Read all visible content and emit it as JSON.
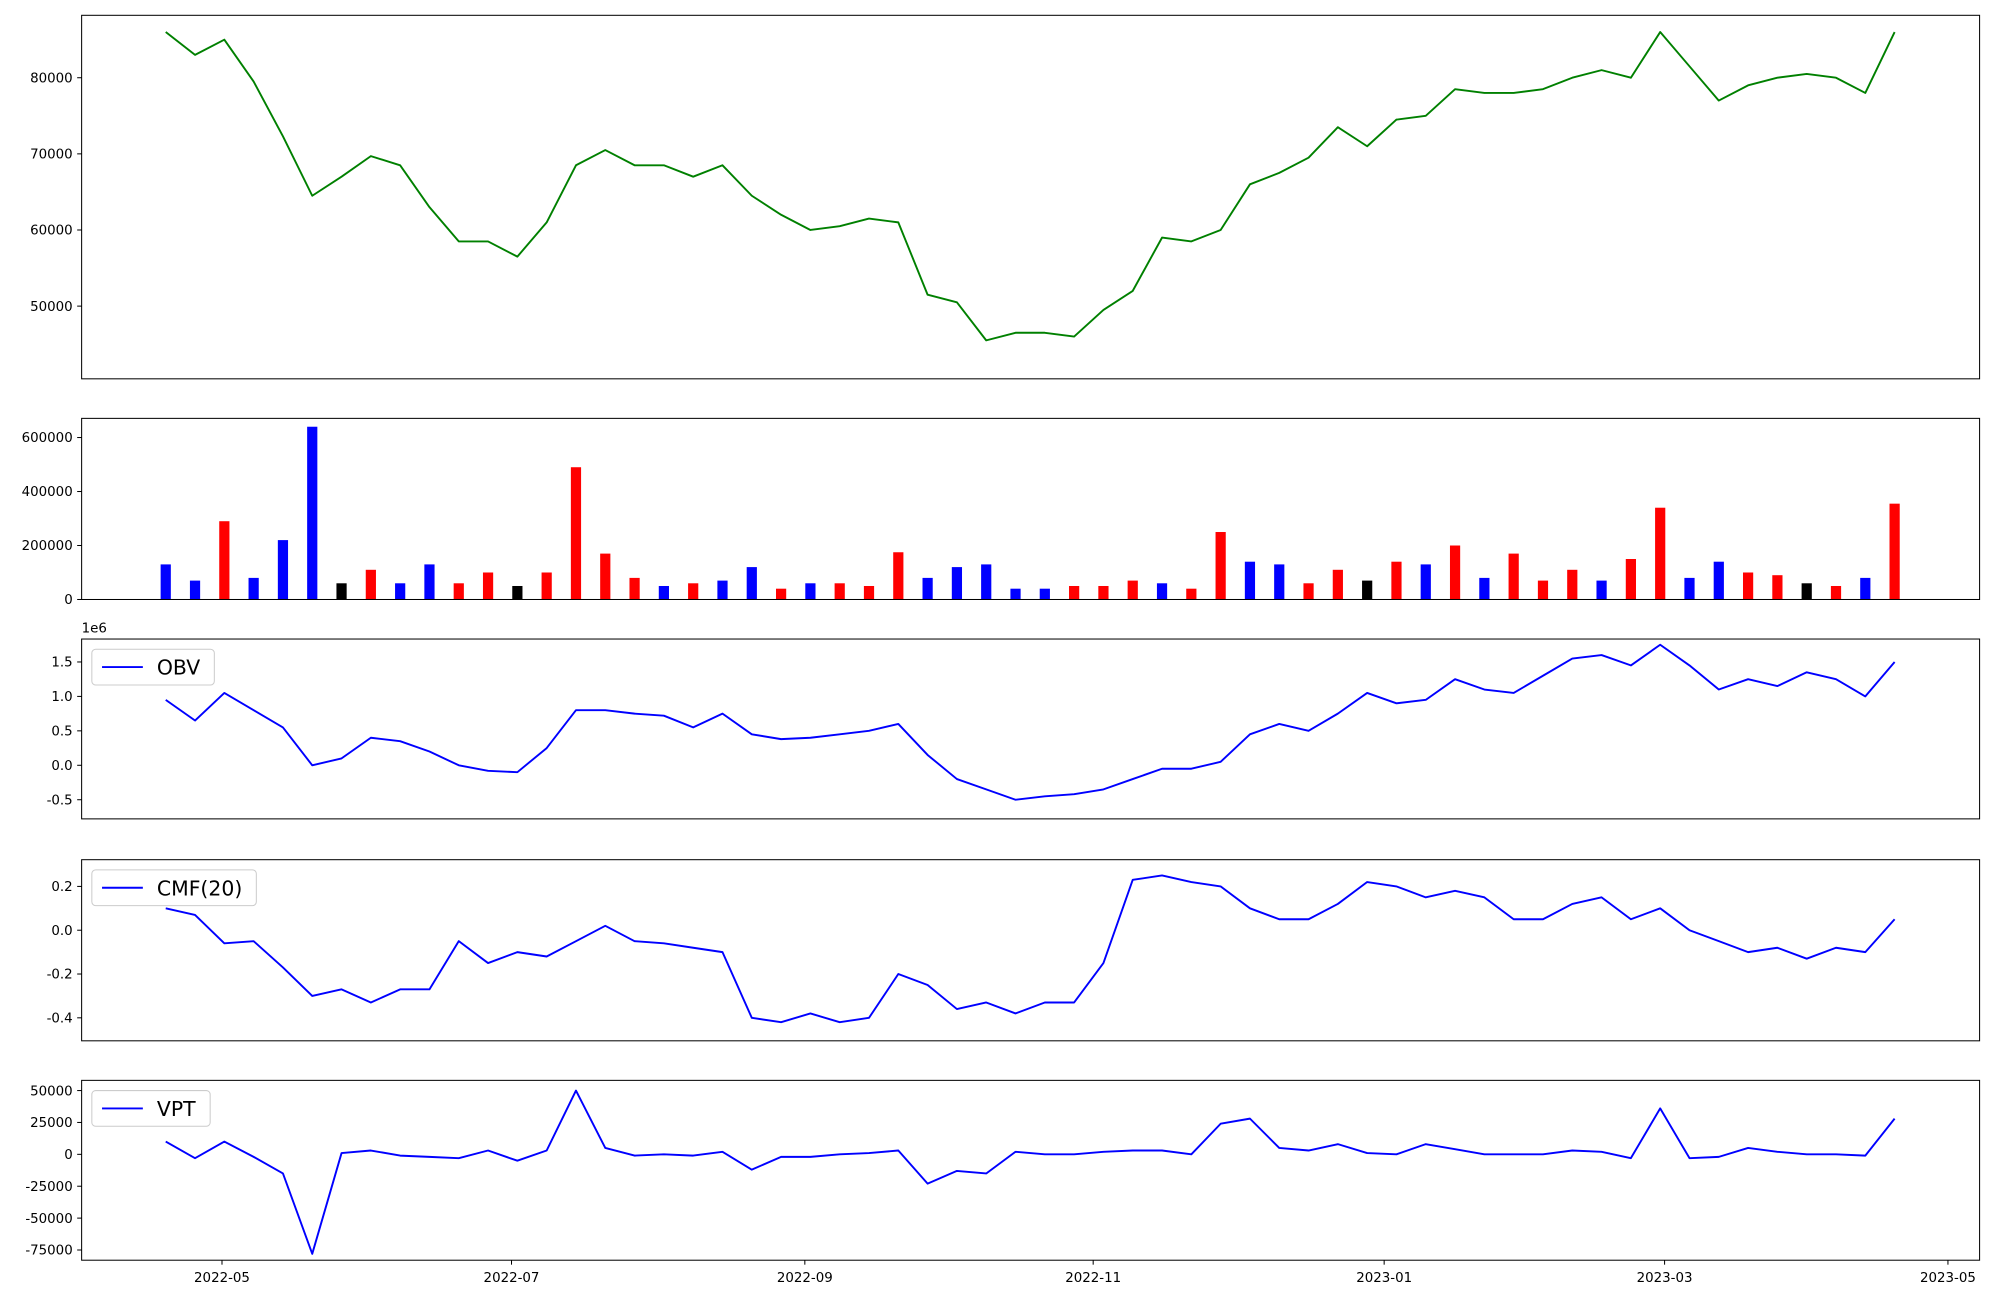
{
  "chart_data": [
    {
      "type": "line",
      "color": "green",
      "xlim": [
        -2.87,
        61.9
      ],
      "ylim": [
        40450,
        88200
      ],
      "yticks": [
        50000,
        60000,
        70000,
        80000
      ],
      "values": [
        86000,
        83000,
        85000,
        79500,
        72300,
        64500,
        67000,
        69700,
        68500,
        63000,
        58500,
        58500,
        56500,
        61000,
        68500,
        70500,
        68500,
        68500,
        67000,
        68500,
        64500,
        62000,
        60000,
        60500,
        61500,
        61000,
        51500,
        50500,
        45500,
        46500,
        46500,
        46000,
        49500,
        52000,
        59000,
        58500,
        60000,
        66000,
        67500,
        69500,
        73500,
        71000,
        74500,
        75000,
        78500,
        78000,
        78000,
        78500,
        80000,
        81000,
        80000,
        86000,
        81500,
        77000,
        79000,
        80000,
        80500,
        80000,
        78000,
        86000
      ]
    },
    {
      "type": "bar",
      "xlim": [
        -2.87,
        61.9
      ],
      "ylim": [
        0,
        671000
      ],
      "yticks": [
        0,
        200000,
        400000,
        600000
      ],
      "values": [
        130000,
        70000,
        290000,
        80000,
        220000,
        640000,
        60000,
        110000,
        60000,
        130000,
        60000,
        100000,
        50000,
        100000,
        490000,
        170000,
        80000,
        50000,
        60000,
        70000,
        120000,
        40000,
        60000,
        60000,
        50000,
        175000,
        80000,
        120000,
        130000,
        40000,
        40000,
        50000,
        50000,
        70000,
        60000,
        40000,
        250000,
        140000,
        130000,
        60000,
        110000,
        70000,
        140000,
        130000,
        200000,
        80000,
        170000,
        70000,
        110000,
        70000,
        150000,
        340000,
        80000,
        140000,
        100000,
        90000,
        60000,
        50000,
        80000,
        355000
      ],
      "colors": [
        "blue",
        "blue",
        "red",
        "blue",
        "blue",
        "blue",
        "black",
        "red",
        "blue",
        "blue",
        "red",
        "red",
        "black",
        "red",
        "red",
        "red",
        "red",
        "blue",
        "red",
        "blue",
        "blue",
        "red",
        "blue",
        "red",
        "red",
        "red",
        "blue",
        "blue",
        "blue",
        "blue",
        "blue",
        "red",
        "red",
        "red",
        "blue",
        "red",
        "red",
        "blue",
        "blue",
        "red",
        "red",
        "black",
        "red",
        "blue",
        "red",
        "blue",
        "red",
        "red",
        "red",
        "blue",
        "red",
        "red",
        "blue",
        "blue",
        "red",
        "red",
        "black",
        "red",
        "blue",
        "red"
      ]
    },
    {
      "type": "line",
      "legend": "upper left",
      "offset_label": "1e6",
      "xlim": [
        -2.87,
        61.9
      ],
      "ylim": [
        -0.778,
        1.833
      ],
      "yticks": [
        -0.5,
        {
          "value": 0,
          "label": "0.0"
        },
        0.5,
        {
          "value": 1,
          "label": "1.0"
        },
        1.5
      ],
      "series": [
        {
          "name": "OBV",
          "color": "blue",
          "values": [
            0.95,
            0.65,
            1.05,
            0.8,
            0.55,
            0.0,
            0.1,
            0.4,
            0.35,
            0.2,
            0.0,
            -0.08,
            -0.1,
            0.25,
            0.8,
            0.8,
            0.75,
            0.72,
            0.55,
            0.75,
            0.45,
            0.38,
            0.4,
            0.45,
            0.5,
            0.6,
            0.15,
            -0.2,
            -0.35,
            -0.5,
            -0.45,
            -0.42,
            -0.35,
            -0.2,
            -0.05,
            -0.05,
            0.05,
            0.45,
            0.6,
            0.5,
            0.75,
            1.05,
            0.9,
            0.95,
            1.25,
            1.1,
            1.05,
            1.3,
            1.55,
            1.6,
            1.45,
            1.75,
            1.45,
            1.1,
            1.25,
            1.15,
            1.35,
            1.25,
            1.0,
            1.5
          ]
        }
      ]
    },
    {
      "type": "line",
      "legend": "upper left",
      "xlim": [
        -2.87,
        61.9
      ],
      "ylim": [
        -0.505,
        0.322
      ],
      "yticks": [
        -0.4,
        -0.2,
        {
          "value": 0,
          "label": "0.0"
        },
        0.2
      ],
      "series": [
        {
          "name": "CMF(20)",
          "color": "blue",
          "values": [
            0.1,
            0.07,
            -0.06,
            -0.05,
            -0.17,
            -0.3,
            -0.27,
            -0.33,
            -0.27,
            -0.27,
            -0.05,
            -0.15,
            -0.1,
            -0.12,
            -0.05,
            0.02,
            -0.05,
            -0.06,
            -0.08,
            -0.1,
            -0.4,
            -0.42,
            -0.38,
            -0.42,
            -0.4,
            -0.2,
            -0.25,
            -0.36,
            -0.33,
            -0.38,
            -0.33,
            -0.33,
            -0.15,
            0.23,
            0.25,
            0.22,
            0.2,
            0.1,
            0.05,
            0.05,
            0.12,
            0.22,
            0.2,
            0.15,
            0.18,
            0.15,
            0.05,
            0.05,
            0.12,
            0.15,
            0.05,
            0.1,
            0.0,
            -0.05,
            -0.1,
            -0.08,
            -0.13,
            -0.08,
            -0.1,
            0.05
          ]
        }
      ]
    },
    {
      "type": "line",
      "legend": "upper left",
      "xlim": [
        -2.87,
        61.9
      ],
      "xticks": [
        {
          "value": 1.92,
          "label": "2022-05"
        },
        {
          "value": 11.8,
          "label": "2022-07"
        },
        {
          "value": 21.81,
          "label": "2022-09"
        },
        {
          "value": 31.65,
          "label": "2022-11"
        },
        {
          "value": 41.58,
          "label": "2023-01"
        },
        {
          "value": 51.15,
          "label": "2023-03"
        },
        {
          "value": 60.82,
          "label": "2023-05"
        }
      ],
      "ylim": [
        -83000,
        58000
      ],
      "yticks": [
        -75000,
        -50000,
        -25000,
        0,
        25000,
        50000
      ],
      "series": [
        {
          "name": "VPT",
          "color": "blue",
          "values": [
            10000,
            -3000,
            10000,
            -2000,
            -15000,
            -78000,
            1000,
            3000,
            -1000,
            -2000,
            -3000,
            3000,
            -5000,
            3000,
            50000,
            5000,
            -1000,
            0,
            -1000,
            2000,
            -12000,
            -2000,
            -2000,
            0,
            1000,
            3000,
            -23000,
            -13000,
            -15000,
            2000,
            0,
            0,
            2000,
            3000,
            3000,
            0,
            24000,
            28000,
            5000,
            3000,
            8000,
            1000,
            0,
            8000,
            4000,
            0,
            0,
            0,
            3000,
            2000,
            -3000,
            36000,
            -3000,
            -2000,
            5000,
            2000,
            0,
            0,
            -1000,
            28000
          ]
        }
      ]
    }
  ]
}
